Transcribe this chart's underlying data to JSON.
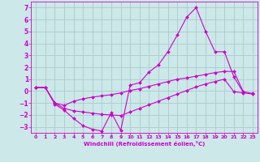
{
  "xlabel": "Windchill (Refroidissement éolien,°C)",
  "background_color": "#cce8e8",
  "grid_color": "#aacccc",
  "line_color": "#cc00cc",
  "xlim": [
    -0.5,
    23.5
  ],
  "ylim": [
    -3.5,
    7.5
  ],
  "xticks": [
    0,
    1,
    2,
    3,
    4,
    5,
    6,
    7,
    8,
    9,
    10,
    11,
    12,
    13,
    14,
    15,
    16,
    17,
    18,
    19,
    20,
    21,
    22,
    23
  ],
  "yticks": [
    -3,
    -2,
    -1,
    0,
    1,
    2,
    3,
    4,
    5,
    6,
    7
  ],
  "line1_x": [
    0,
    1,
    2,
    3,
    4,
    5,
    6,
    7,
    8,
    9,
    10,
    11,
    12,
    13,
    14,
    15,
    16,
    17,
    18,
    19,
    20,
    21,
    22
  ],
  "line1_y": [
    0.3,
    0.3,
    -1.1,
    -1.6,
    -2.3,
    -2.9,
    -3.2,
    -3.35,
    -1.8,
    -3.3,
    0.5,
    0.7,
    1.6,
    2.2,
    3.3,
    4.7,
    6.2,
    7.0,
    5.0,
    3.3,
    3.3,
    1.2,
    -0.1
  ],
  "line2_x": [
    0,
    1,
    2,
    3,
    4,
    5,
    6,
    7,
    8,
    9,
    10,
    11,
    12,
    13,
    14,
    15,
    16,
    17,
    18,
    19,
    20,
    21,
    22,
    23
  ],
  "line2_y": [
    0.3,
    0.3,
    -1.0,
    -1.2,
    -0.85,
    -0.65,
    -0.5,
    -0.4,
    -0.3,
    -0.15,
    0.05,
    0.2,
    0.4,
    0.6,
    0.8,
    1.0,
    1.1,
    1.25,
    1.4,
    1.55,
    1.65,
    1.65,
    -0.05,
    -0.2
  ],
  "line3_x": [
    0,
    1,
    2,
    3,
    4,
    5,
    6,
    7,
    8,
    9,
    10,
    11,
    12,
    13,
    14,
    15,
    16,
    17,
    18,
    19,
    20,
    21,
    22,
    23
  ],
  "line3_y": [
    0.3,
    0.3,
    -1.0,
    -1.45,
    -1.65,
    -1.75,
    -1.85,
    -1.95,
    -2.0,
    -2.05,
    -1.75,
    -1.45,
    -1.15,
    -0.85,
    -0.55,
    -0.25,
    0.05,
    0.35,
    0.6,
    0.8,
    1.0,
    -0.05,
    -0.15,
    -0.25
  ]
}
